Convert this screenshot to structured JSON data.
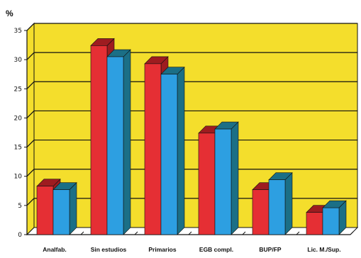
{
  "chart_data": {
    "type": "bar",
    "title": "",
    "ylabel": "%",
    "xlabel": "",
    "ylim": [
      0,
      35
    ],
    "yticks": [
      0,
      5,
      10,
      15,
      20,
      25,
      30,
      35
    ],
    "grid": true,
    "categories": [
      "Analfab.",
      "Sin estudios",
      "Primarios",
      "EGB compl.",
      "BUP/FP",
      "Lic. M./Sup."
    ],
    "series": [
      {
        "values": [
          8.3,
          32.4,
          29.3,
          17.4,
          7.7,
          3.8
        ]
      },
      {
        "values": [
          7.7,
          30.5,
          27.5,
          18.1,
          9.4,
          4.6
        ]
      }
    ]
  },
  "colors": {
    "plot_background": "#f4de2c",
    "series_1_face": "#e52f34",
    "series_1_side": "#9e1c20",
    "series_2_face": "#2d9fe1",
    "series_2_side": "#1b6f86",
    "grid": "#111111"
  }
}
